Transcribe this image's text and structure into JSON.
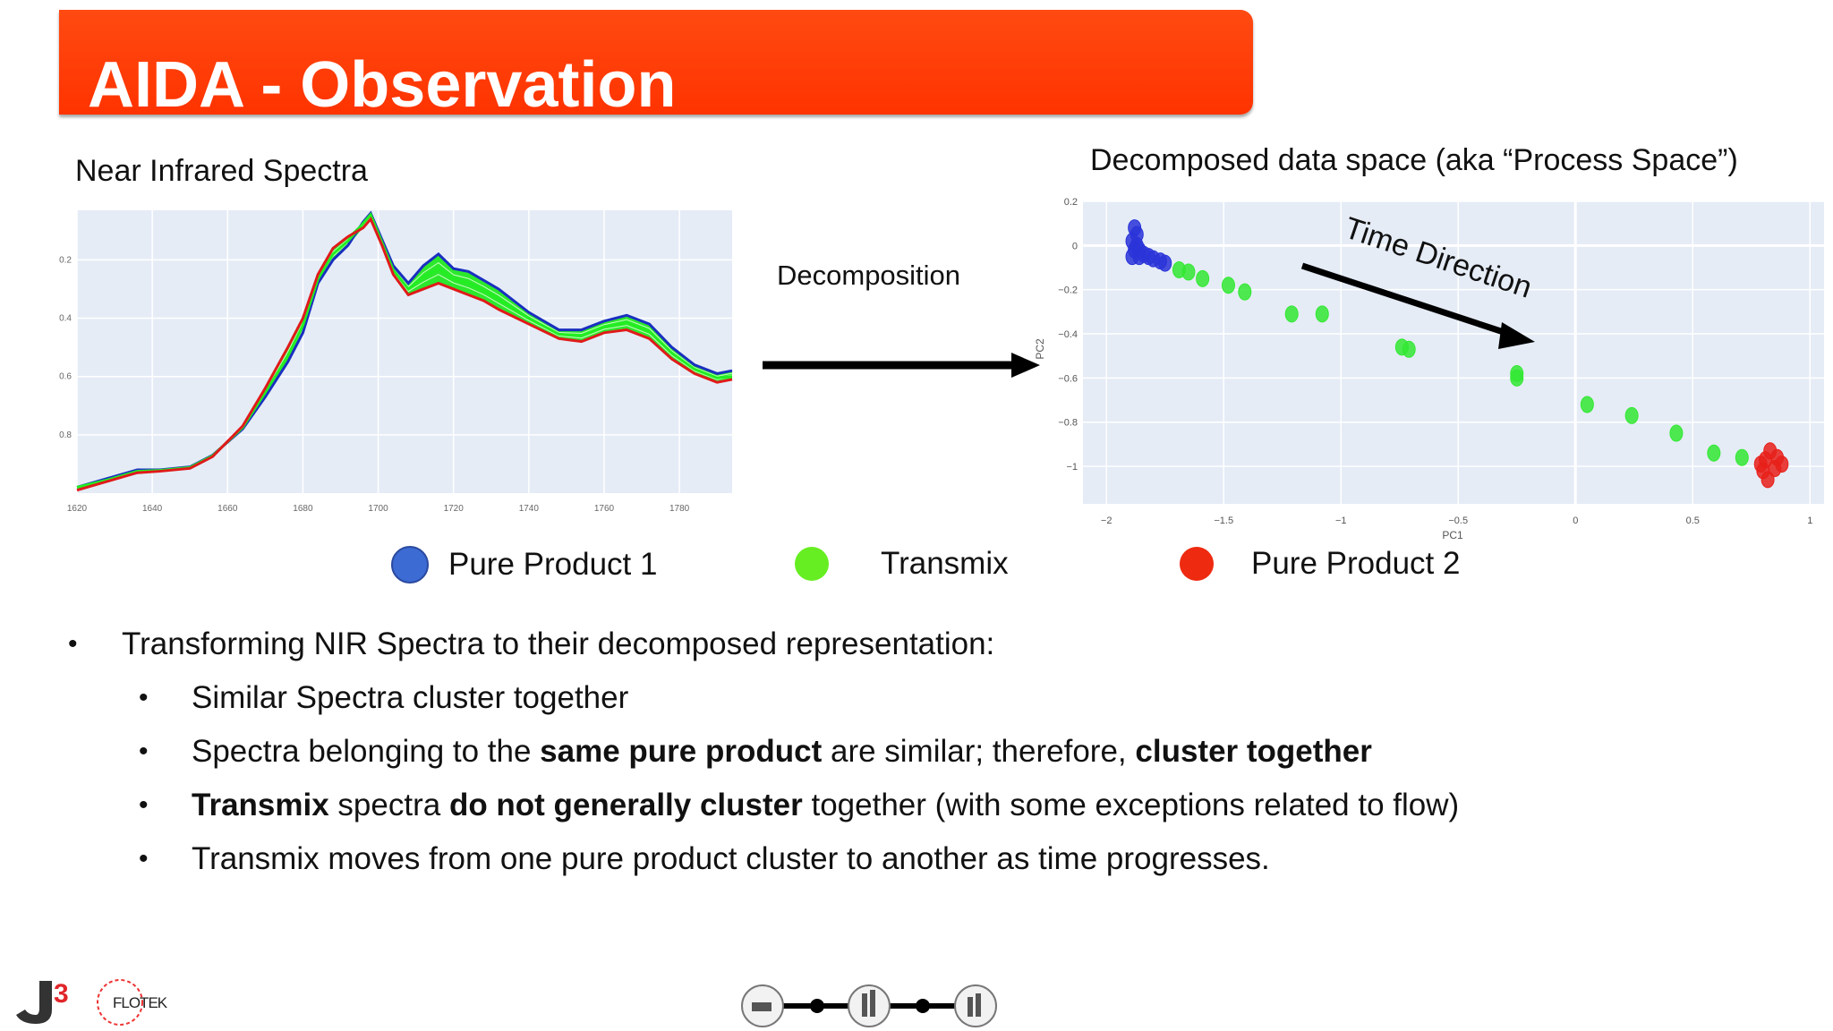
{
  "slide": {
    "title": "AIDA - Observation"
  },
  "spectra_panel": {
    "caption": "Near Infrared Spectra",
    "x_ticks": [
      "1620",
      "1640",
      "1660",
      "1680",
      "1700",
      "1720",
      "1740",
      "1760",
      "1780"
    ],
    "y_ticks": [
      "0.8",
      "0.6",
      "0.4",
      "0.2"
    ]
  },
  "decomposition": {
    "label": "Decomposition"
  },
  "process_panel": {
    "caption": "Decomposed data space (aka “Process Space”)",
    "annotation": "Time Direction"
  },
  "legend": [
    {
      "label": "Pure Product 1",
      "color": "#3d6bd4"
    },
    {
      "label": "Transmix",
      "color": "#66ee22"
    },
    {
      "label": "Pure Product 2",
      "color": "#ee2a10"
    }
  ],
  "bullets": [
    {
      "level": 1,
      "parts": [
        {
          "text": "Transforming NIR Spectra to their decomposed representation:",
          "bold": false
        }
      ]
    },
    {
      "level": 2,
      "parts": [
        {
          "text": "Similar Spectra cluster together",
          "bold": false
        }
      ]
    },
    {
      "level": 2,
      "parts": [
        {
          "text": "Spectra belonging to the ",
          "bold": false
        },
        {
          "text": "same pure product",
          "bold": true
        },
        {
          "text": " are similar; therefore, ",
          "bold": false
        },
        {
          "text": "cluster together",
          "bold": true
        }
      ]
    },
    {
      "level": 2,
      "parts": [
        {
          "text": "Transmix",
          "bold": true
        },
        {
          "text": " spectra ",
          "bold": false
        },
        {
          "text": "do not generally cluster",
          "bold": true
        },
        {
          "text": " together (with some exceptions related to flow)",
          "bold": false
        }
      ]
    },
    {
      "level": 2,
      "parts": [
        {
          "text": "Transmix moves from one pure product cluster to another as time progresses.",
          "bold": false
        }
      ]
    }
  ],
  "footer": {
    "logo_left_text": "FLOTEK"
  },
  "chart_data": [
    {
      "type": "line",
      "title": "Near Infrared Spectra",
      "xlabel": "",
      "ylabel": "",
      "xlim": [
        1620,
        1794
      ],
      "ylim": [
        0.0,
        0.97
      ],
      "x_ticks": [
        1620,
        1640,
        1660,
        1680,
        1700,
        1720,
        1740,
        1760,
        1780
      ],
      "y_ticks": [
        0.2,
        0.4,
        0.6,
        0.8
      ],
      "grid": true,
      "x": [
        1620,
        1628,
        1636,
        1642,
        1650,
        1656,
        1664,
        1670,
        1676,
        1680,
        1684,
        1688,
        1692,
        1696,
        1698,
        1701,
        1704,
        1708,
        1712,
        1716,
        1720,
        1724,
        1728,
        1732,
        1740,
        1748,
        1754,
        1760,
        1766,
        1772,
        1778,
        1784,
        1790,
        1794
      ],
      "series": [
        {
          "color": "#1a2fc0",
          "values": [
            0.02,
            0.05,
            0.08,
            0.08,
            0.09,
            0.13,
            0.22,
            0.33,
            0.45,
            0.55,
            0.72,
            0.8,
            0.85,
            0.93,
            0.96,
            0.87,
            0.78,
            0.72,
            0.78,
            0.82,
            0.77,
            0.76,
            0.73,
            0.7,
            0.62,
            0.56,
            0.56,
            0.59,
            0.61,
            0.58,
            0.5,
            0.44,
            0.41,
            0.42
          ]
        },
        {
          "color": "#22ee22",
          "values": [
            0.02,
            0.045,
            0.075,
            0.078,
            0.088,
            0.128,
            0.225,
            0.345,
            0.47,
            0.575,
            0.735,
            0.82,
            0.865,
            0.925,
            0.955,
            0.86,
            0.765,
            0.7,
            0.74,
            0.77,
            0.735,
            0.72,
            0.695,
            0.665,
            0.6,
            0.545,
            0.54,
            0.57,
            0.585,
            0.555,
            0.48,
            0.425,
            0.395,
            0.4
          ]
        },
        {
          "color": "#e01a1a",
          "values": [
            0.01,
            0.04,
            0.07,
            0.075,
            0.085,
            0.125,
            0.23,
            0.36,
            0.5,
            0.6,
            0.75,
            0.84,
            0.88,
            0.91,
            0.94,
            0.85,
            0.75,
            0.68,
            0.7,
            0.72,
            0.7,
            0.68,
            0.66,
            0.63,
            0.58,
            0.53,
            0.52,
            0.55,
            0.56,
            0.53,
            0.46,
            0.41,
            0.38,
            0.39
          ]
        }
      ]
    },
    {
      "type": "scatter",
      "title": "Decomposed data space (aka “Process Space”)",
      "xlabel": "PC1",
      "ylabel": "PC2",
      "xlim": [
        -2.1,
        1.06
      ],
      "ylim": [
        -1.17,
        0.2
      ],
      "x_ticks": [
        -2,
        -1.5,
        -1,
        -0.5,
        0,
        0.5,
        1
      ],
      "y_ticks": [
        0.2,
        0,
        -0.2,
        -0.4,
        -0.6,
        -0.8,
        -1
      ],
      "grid": true,
      "series": [
        {
          "name": "Pure Product 1",
          "color": "#2a34d8",
          "points": [
            [
              -1.88,
              0.08
            ],
            [
              -1.87,
              0.05
            ],
            [
              -1.89,
              0.02
            ],
            [
              -1.88,
              -0.02
            ],
            [
              -1.86,
              -0.05
            ],
            [
              -1.89,
              -0.05
            ],
            [
              -1.84,
              -0.04
            ],
            [
              -1.82,
              -0.05
            ],
            [
              -1.8,
              -0.06
            ],
            [
              -1.77,
              -0.07
            ],
            [
              -1.75,
              -0.08
            ],
            [
              -1.86,
              -0.02
            ],
            [
              -1.87,
              0.0
            ]
          ]
        },
        {
          "name": "Transmix",
          "color": "#33e833",
          "points": [
            [
              -1.69,
              -0.11
            ],
            [
              -1.65,
              -0.12
            ],
            [
              -1.59,
              -0.15
            ],
            [
              -1.48,
              -0.18
            ],
            [
              -1.41,
              -0.21
            ],
            [
              -1.21,
              -0.31
            ],
            [
              -1.08,
              -0.31
            ],
            [
              -0.74,
              -0.46
            ],
            [
              -0.71,
              -0.47
            ],
            [
              -0.25,
              -0.58
            ],
            [
              -0.25,
              -0.6
            ],
            [
              0.05,
              -0.72
            ],
            [
              0.24,
              -0.77
            ],
            [
              0.43,
              -0.85
            ],
            [
              0.59,
              -0.94
            ],
            [
              0.71,
              -0.96
            ]
          ]
        },
        {
          "name": "Pure Product 2",
          "color": "#e8201a",
          "points": [
            [
              0.83,
              -0.93
            ],
            [
              0.86,
              -0.96
            ],
            [
              0.8,
              -1.02
            ],
            [
              0.82,
              -1.06
            ],
            [
              0.85,
              -1.01
            ],
            [
              0.88,
              -0.99
            ],
            [
              0.81,
              -0.97
            ],
            [
              0.79,
              -0.99
            ]
          ]
        }
      ]
    }
  ]
}
